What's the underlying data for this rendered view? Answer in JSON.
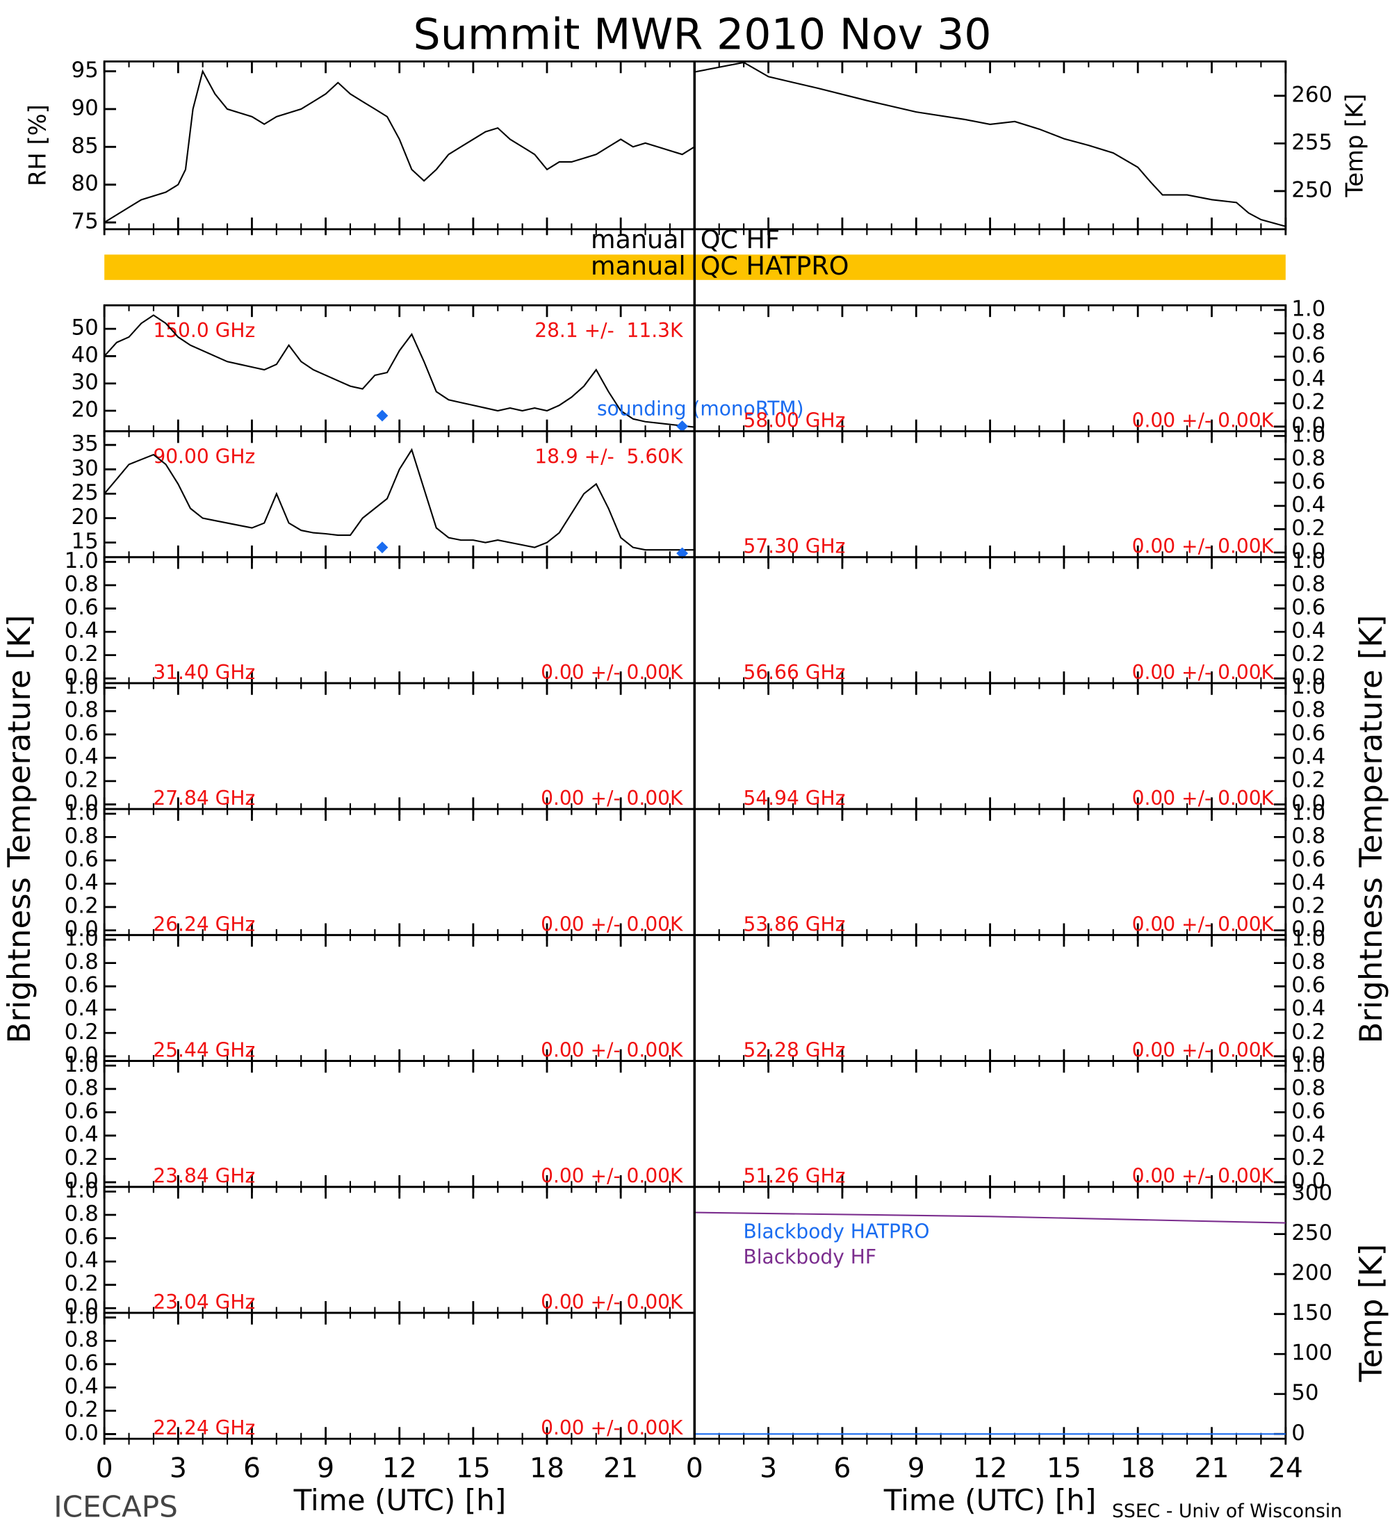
{
  "title": "Summit MWR 2010 Nov 30",
  "qc": [
    {
      "left": "manual",
      "right": "QC HF"
    },
    {
      "left": "manual",
      "right": "QC HATPRO",
      "color": "#fdc300"
    }
  ],
  "x_axis": {
    "xlim": [
      0,
      24
    ],
    "left_xticks": [
      0,
      3,
      6,
      9,
      12,
      15,
      18,
      21
    ],
    "right_xticks": [
      0,
      3,
      6,
      9,
      12,
      15,
      18,
      21,
      24
    ],
    "minor_xticks": [
      0,
      1,
      2,
      3,
      4,
      5,
      6,
      7,
      8,
      9,
      10,
      11,
      12,
      13,
      14,
      15,
      16,
      17,
      18,
      19,
      20,
      21,
      22,
      23,
      24
    ],
    "label": "Time (UTC) [h]"
  },
  "left_label": "Brightness Temperature [K]",
  "right_label": "Brightness Temperature [K]",
  "footer_left": "ICECAPS",
  "footer_right": "SSEC - Univ of Wisconsin",
  "chart_data": [
    {
      "type": "line",
      "ylabel": "RH [%]",
      "ylim": [
        74.1,
        96.3
      ],
      "yticks": [
        75,
        80,
        85,
        90,
        95
      ],
      "x": [
        0,
        1,
        1.5,
        2,
        2.5,
        3,
        3.3,
        3.6,
        4,
        4.5,
        5,
        5.5,
        6,
        6.5,
        7,
        7.5,
        8,
        8.5,
        9,
        9.5,
        10,
        10.5,
        11,
        11.5,
        12,
        12.5,
        13,
        13.5,
        14,
        14.5,
        15,
        15.5,
        16,
        16.5,
        17,
        17.5,
        18,
        18.5,
        19,
        19.5,
        20,
        20.5,
        21,
        21.5,
        22,
        22.5,
        23,
        23.5,
        24
      ],
      "series": [
        {
          "color": "#000000",
          "values": [
            75,
            77,
            78,
            78.5,
            79,
            80,
            82,
            90,
            95,
            92,
            90,
            89.5,
            89,
            88,
            89,
            89.5,
            90,
            91,
            92,
            93.5,
            92,
            91,
            90,
            89,
            86,
            82,
            80.5,
            82,
            84,
            85,
            86,
            87,
            87.5,
            86,
            85,
            84,
            82,
            83,
            83,
            83.5,
            84,
            85,
            86,
            85,
            85.5,
            85,
            84.5,
            84,
            85
          ]
        }
      ]
    },
    {
      "type": "line",
      "ylabel": "Temp [K]",
      "ylim": [
        246.0,
        263.6
      ],
      "yticks": [
        250,
        255,
        260
      ],
      "x": [
        0,
        2,
        3,
        5,
        7,
        9,
        11,
        12,
        13,
        14,
        15,
        16,
        17,
        18,
        18.5,
        19,
        20,
        21,
        22,
        22.5,
        23,
        24
      ],
      "series": [
        {
          "color": "#000000",
          "values": [
            262.5,
            263.5,
            262,
            260.8,
            259.5,
            258.3,
            257.5,
            257,
            257.3,
            256.5,
            255.5,
            254.8,
            254,
            252.5,
            251,
            249.6,
            249.6,
            249.1,
            248.8,
            247.7,
            247,
            246.3
          ]
        }
      ]
    },
    {
      "type": "line",
      "label": "150.0 GHz",
      "stats": "28.1 +/-  11.3K",
      "ylim": [
        12.5,
        58.6
      ],
      "yticks": [
        20,
        30,
        40,
        50
      ],
      "x": [
        0,
        0.5,
        1,
        1.5,
        2,
        2.5,
        3,
        3.5,
        4,
        4.5,
        5,
        5.5,
        6,
        6.5,
        7,
        7.5,
        8,
        8.5,
        9,
        9.5,
        10,
        10.5,
        11,
        11.5,
        12,
        12.5,
        13,
        13.5,
        14,
        14.5,
        15,
        15.5,
        16,
        16.5,
        17,
        17.5,
        18,
        18.5,
        19,
        19.5,
        20,
        20.5,
        21,
        21.5,
        22,
        22.5,
        23,
        23.5,
        24
      ],
      "series": [
        {
          "color": "#000000",
          "values": [
            40,
            45,
            47,
            52,
            55,
            52,
            47,
            44,
            42,
            40,
            38,
            37,
            36,
            35,
            37,
            44,
            38,
            35,
            33,
            31,
            29,
            28,
            33,
            34,
            42,
            48,
            38,
            27,
            24,
            23,
            22,
            21,
            20,
            21,
            20,
            21,
            20,
            22,
            25,
            29,
            35,
            27,
            20,
            17,
            16,
            15.5,
            15,
            14.5,
            14
          ]
        },
        {
          "name": "sounding (monoRTM)",
          "color": "#1a6cf0",
          "marker": "diamond",
          "x": [
            11.3,
            23.5
          ],
          "values": [
            18.2,
            14.3
          ]
        }
      ]
    },
    {
      "type": "line",
      "label": "90.00 GHz",
      "stats": "18.9 +/-  5.60K",
      "ylim": [
        12,
        37.8
      ],
      "yticks": [
        15,
        20,
        25,
        30,
        35
      ],
      "x": [
        0,
        0.5,
        1,
        1.5,
        2,
        2.5,
        3,
        3.5,
        4,
        4.5,
        5,
        5.5,
        6,
        6.5,
        7,
        7.5,
        8,
        8.5,
        9,
        9.5,
        10,
        10.5,
        11,
        11.5,
        12,
        12.5,
        13,
        13.5,
        14,
        14.5,
        15,
        15.5,
        16,
        16.5,
        17,
        17.5,
        18,
        18.5,
        19,
        19.5,
        20,
        20.5,
        21,
        21.5,
        22,
        23,
        24
      ],
      "series": [
        {
          "color": "#000000",
          "values": [
            25,
            28,
            31,
            32,
            33,
            31,
            27,
            22,
            20,
            19.5,
            19,
            18.5,
            18,
            19,
            25,
            19,
            17.5,
            17,
            16.8,
            16.5,
            16.5,
            20,
            22,
            24,
            30,
            34,
            26,
            18,
            16,
            15.5,
            15.5,
            15,
            15.5,
            15,
            14.5,
            14,
            15,
            17,
            21,
            25,
            27,
            22,
            16,
            14,
            13.5,
            13.5,
            13.5
          ]
        },
        {
          "color": "#1a6cf0",
          "marker": "diamond",
          "x": [
            11.3,
            23.5
          ],
          "values": [
            14,
            12.8
          ]
        }
      ]
    },
    {
      "type": "line",
      "label": "31.40 GHz",
      "stats": "0.00 +/- 0.00K",
      "ylim": [
        -0.04,
        1.04
      ],
      "yticks": [
        {
          "value": 0,
          "label": "0.0"
        },
        0.2,
        0.4,
        0.6,
        0.8,
        {
          "value": 1,
          "label": "1.0"
        }
      ],
      "series": []
    },
    {
      "type": "line",
      "label": "27.84 GHz",
      "stats": "0.00 +/- 0.00K",
      "ylim": [
        -0.04,
        1.04
      ],
      "yticks": [
        {
          "value": 0,
          "label": "0.0"
        },
        0.2,
        0.4,
        0.6,
        0.8,
        {
          "value": 1,
          "label": "1.0"
        }
      ],
      "series": []
    },
    {
      "type": "line",
      "label": "26.24 GHz",
      "stats": "0.00 +/- 0.00K",
      "ylim": [
        -0.04,
        1.04
      ],
      "yticks": [
        {
          "value": 0,
          "label": "0.0"
        },
        0.2,
        0.4,
        0.6,
        0.8,
        {
          "value": 1,
          "label": "1.0"
        }
      ],
      "series": []
    },
    {
      "type": "line",
      "label": "25.44 GHz",
      "stats": "0.00 +/- 0.00K",
      "ylim": [
        -0.04,
        1.04
      ],
      "yticks": [
        {
          "value": 0,
          "label": "0.0"
        },
        0.2,
        0.4,
        0.6,
        0.8,
        {
          "value": 1,
          "label": "1.0"
        }
      ],
      "series": []
    },
    {
      "type": "line",
      "label": "23.84 GHz",
      "stats": "0.00 +/- 0.00K",
      "ylim": [
        -0.04,
        1.04
      ],
      "yticks": [
        {
          "value": 0,
          "label": "0.0"
        },
        0.2,
        0.4,
        0.6,
        0.8,
        {
          "value": 1,
          "label": "1.0"
        }
      ],
      "series": []
    },
    {
      "type": "line",
      "label": "23.04 GHz",
      "stats": "0.00 +/- 0.00K",
      "ylim": [
        -0.04,
        1.04
      ],
      "yticks": [
        {
          "value": 0,
          "label": "0.0"
        },
        0.2,
        0.4,
        0.6,
        0.8,
        {
          "value": 1,
          "label": "1.0"
        }
      ],
      "series": []
    },
    {
      "type": "line",
      "label": "22.24 GHz",
      "stats": "0.00 +/- 0.00K",
      "ylim": [
        -0.04,
        1.04
      ],
      "yticks": [
        {
          "value": 0,
          "label": "0.0"
        },
        0.2,
        0.4,
        0.6,
        0.8,
        {
          "value": 1,
          "label": "1.0"
        }
      ],
      "series": []
    },
    {
      "type": "line",
      "label": "58.00 GHz",
      "stats": "0.00 +/- 0.00K",
      "ylim": [
        -0.04,
        1.04
      ],
      "yticks": [
        {
          "value": 0,
          "label": "0.0"
        },
        0.2,
        0.4,
        0.6,
        0.8,
        {
          "value": 1,
          "label": "1.0"
        }
      ],
      "series": []
    },
    {
      "type": "line",
      "label": "57.30 GHz",
      "stats": "0.00 +/- 0.00K",
      "ylim": [
        -0.04,
        1.04
      ],
      "yticks": [
        {
          "value": 0,
          "label": "0.0"
        },
        0.2,
        0.4,
        0.6,
        0.8,
        {
          "value": 1,
          "label": "1.0"
        }
      ],
      "series": []
    },
    {
      "type": "line",
      "label": "56.66 GHz",
      "stats": "0.00 +/- 0.00K",
      "ylim": [
        -0.04,
        1.04
      ],
      "yticks": [
        {
          "value": 0,
          "label": "0.0"
        },
        0.2,
        0.4,
        0.6,
        0.8,
        {
          "value": 1,
          "label": "1.0"
        }
      ],
      "series": []
    },
    {
      "type": "line",
      "label": "54.94 GHz",
      "stats": "0.00 +/- 0.00K",
      "ylim": [
        -0.04,
        1.04
      ],
      "yticks": [
        {
          "value": 0,
          "label": "0.0"
        },
        0.2,
        0.4,
        0.6,
        0.8,
        {
          "value": 1,
          "label": "1.0"
        }
      ],
      "series": []
    },
    {
      "type": "line",
      "label": "53.86 GHz",
      "stats": "0.00 +/- 0.00K",
      "ylim": [
        -0.04,
        1.04
      ],
      "yticks": [
        {
          "value": 0,
          "label": "0.0"
        },
        0.2,
        0.4,
        0.6,
        0.8,
        {
          "value": 1,
          "label": "1.0"
        }
      ],
      "series": []
    },
    {
      "type": "line",
      "label": "52.28 GHz",
      "stats": "0.00 +/- 0.00K",
      "ylim": [
        -0.04,
        1.04
      ],
      "yticks": [
        {
          "value": 0,
          "label": "0.0"
        },
        0.2,
        0.4,
        0.6,
        0.8,
        {
          "value": 1,
          "label": "1.0"
        }
      ],
      "series": []
    },
    {
      "type": "line",
      "label": "51.26 GHz",
      "stats": "0.00 +/- 0.00K",
      "ylim": [
        -0.04,
        1.04
      ],
      "yticks": [
        {
          "value": 0,
          "label": "0.0"
        },
        0.2,
        0.4,
        0.6,
        0.8,
        {
          "value": 1,
          "label": "1.0"
        }
      ],
      "series": []
    },
    {
      "type": "line",
      "ylabel": "Temp [K]",
      "ylim": [
        -6,
        309
      ],
      "yticks": [
        0,
        50,
        100,
        150,
        200,
        250,
        300
      ],
      "x": [
        0,
        12,
        24
      ],
      "series": [
        {
          "name": "Blackbody HATPRO",
          "color": "#1a6cf0",
          "values": [
            0,
            0,
            0
          ]
        },
        {
          "name": "Blackbody HF",
          "color": "#7b2d8e",
          "values": [
            277,
            272,
            264
          ]
        }
      ]
    }
  ]
}
